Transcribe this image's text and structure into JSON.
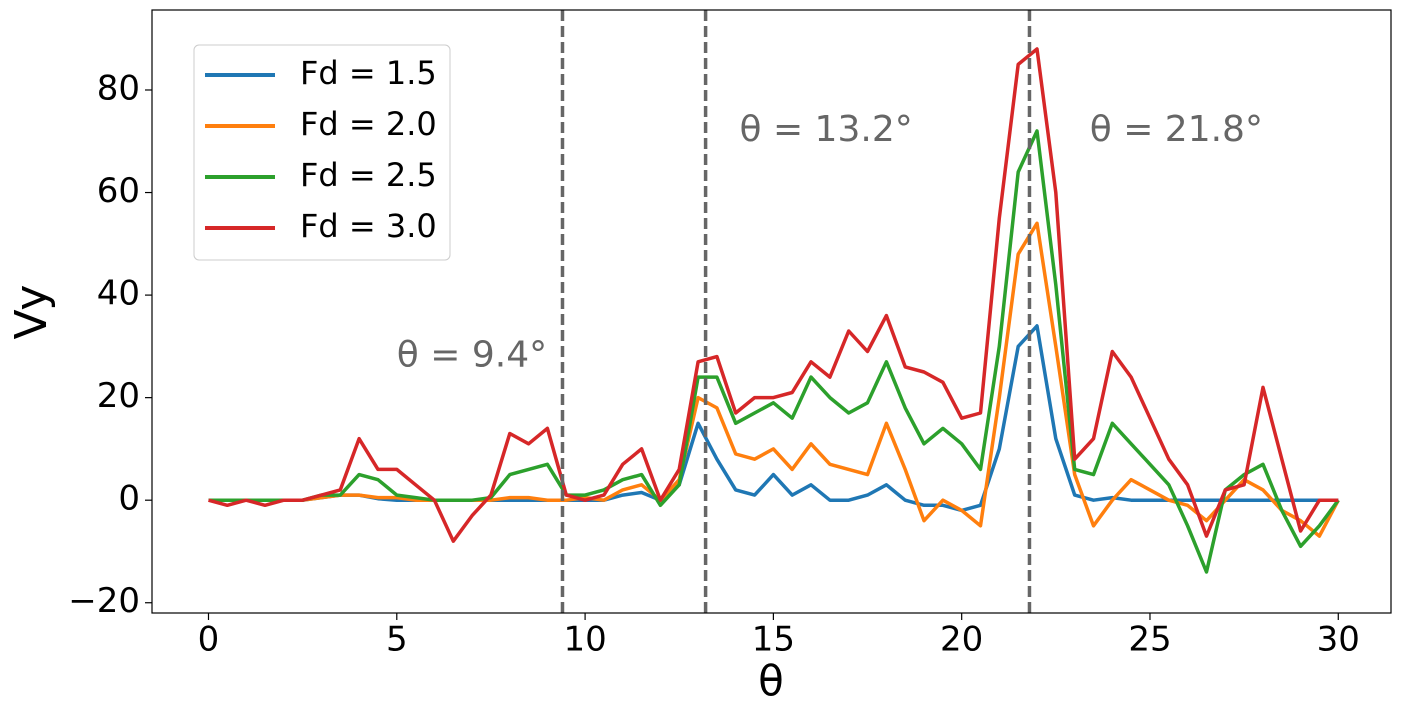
{
  "chart_data": {
    "type": "line",
    "xlabel": "θ",
    "ylabel": "Vy",
    "x": [
      0,
      0.5,
      1,
      1.5,
      2,
      2.5,
      3,
      3.5,
      4,
      4.5,
      5,
      5.5,
      6,
      6.5,
      7,
      7.5,
      8,
      8.5,
      9,
      9.5,
      10,
      10.5,
      11,
      11.5,
      12,
      12.5,
      13,
      13.5,
      14,
      14.5,
      15,
      15.5,
      16,
      16.5,
      17,
      17.5,
      18,
      18.5,
      19,
      19.5,
      20,
      20.5,
      21,
      21.5,
      22,
      22.5,
      23,
      23.5,
      24,
      24.5,
      25,
      25.5,
      26,
      26.5,
      27,
      27.5,
      28,
      28.5,
      29,
      29.5,
      30
    ],
    "series": [
      {
        "name": "Fd = 1.5",
        "color": "#1f77b4",
        "values": [
          0,
          0,
          0,
          0,
          0,
          0,
          0.5,
          1,
          1,
          0.3,
          0,
          0,
          0,
          0,
          0,
          0,
          0,
          0,
          0,
          0,
          0,
          0,
          1,
          1.5,
          0,
          3,
          15,
          8,
          2,
          1,
          5,
          1,
          3,
          0,
          0,
          1,
          3,
          0,
          -1,
          -1,
          -2,
          -1,
          10,
          30,
          34,
          12,
          1,
          0,
          0.5,
          0,
          0,
          0,
          0,
          0,
          0,
          0,
          0,
          0,
          0,
          0,
          0
        ]
      },
      {
        "name": "Fd = 2.0",
        "color": "#ff7f0e",
        "values": [
          0,
          0,
          0,
          0,
          0,
          0,
          0.5,
          1,
          1,
          0.5,
          0.5,
          0,
          0,
          0,
          0,
          0,
          0.5,
          0.5,
          0,
          0,
          0.5,
          0,
          2,
          3,
          0,
          4,
          20,
          18,
          9,
          8,
          10,
          6,
          11,
          7,
          6,
          5,
          15,
          6,
          -4,
          0,
          -2,
          -5,
          20,
          48,
          54,
          30,
          5,
          -5,
          0,
          4,
          2,
          0,
          -1,
          -4,
          0,
          4,
          2,
          -2,
          -4,
          -7,
          0
        ]
      },
      {
        "name": "Fd = 2.5",
        "color": "#2ca02c",
        "values": [
          0,
          0,
          0,
          0,
          0,
          0,
          1,
          1,
          5,
          4,
          1,
          0.5,
          0,
          0,
          0,
          0.5,
          5,
          6,
          7,
          1,
          1,
          2,
          4,
          5,
          -1,
          3,
          24,
          24,
          15,
          17,
          19,
          16,
          24,
          20,
          17,
          19,
          27,
          18,
          11,
          14,
          11,
          6,
          30,
          64,
          72,
          42,
          6,
          5,
          15,
          11,
          7,
          3,
          -5,
          -14,
          2,
          5,
          7,
          -2,
          -9,
          -5,
          0
        ]
      },
      {
        "name": "Fd = 3.0",
        "color": "#d62728",
        "values": [
          0,
          -1,
          0,
          -1,
          0,
          0,
          1,
          2,
          12,
          6,
          6,
          3,
          0,
          -8,
          -3,
          1,
          13,
          11,
          14,
          1,
          0,
          1,
          7,
          10,
          0,
          6,
          27,
          28,
          17,
          20,
          20,
          21,
          27,
          24,
          33,
          29,
          36,
          26,
          25,
          23,
          16,
          17,
          55,
          85,
          88,
          60,
          8,
          12,
          29,
          24,
          16,
          8,
          3,
          -7,
          2,
          3,
          22,
          8,
          -6,
          0,
          0
        ]
      }
    ],
    "xlim": [
      -1.5,
      31.4
    ],
    "ylim": [
      -22,
      95.6
    ],
    "xticks": [
      0,
      5,
      10,
      15,
      20,
      25,
      30
    ],
    "yticks": [
      {
        "value": -20,
        "label": "−20"
      },
      0,
      20,
      40,
      60,
      80
    ],
    "vlines": [
      9.4,
      13.2,
      21.8
    ],
    "annotations": [
      {
        "text": "θ = 9.4°",
        "x": 5,
        "y": 28
      },
      {
        "text": "θ = 13.2°",
        "x": 14.1,
        "y": 72
      },
      {
        "text": "θ = 21.8°",
        "x": 23.4,
        "y": 72
      }
    ],
    "legend": "upper left"
  }
}
